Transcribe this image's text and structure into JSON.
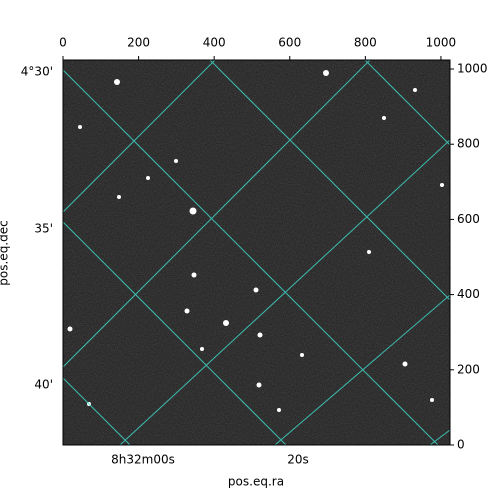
{
  "chart_data": {
    "type": "image",
    "xlabel": "pos.eq.ra",
    "ylabel": "pos.eq.dec",
    "xlim": [
      0,
      1024
    ],
    "ylim": [
      0,
      1024
    ],
    "xticks": [
      0,
      200,
      400,
      600,
      800,
      1000
    ],
    "yticks": [
      0,
      200,
      400,
      600,
      800,
      1000
    ],
    "ra_ticks": [
      "8h32m00s",
      "20s"
    ],
    "dec_ticks": [
      "4°30'",
      "35'",
      "40'"
    ],
    "grid_color": "#40e0d0"
  }
}
